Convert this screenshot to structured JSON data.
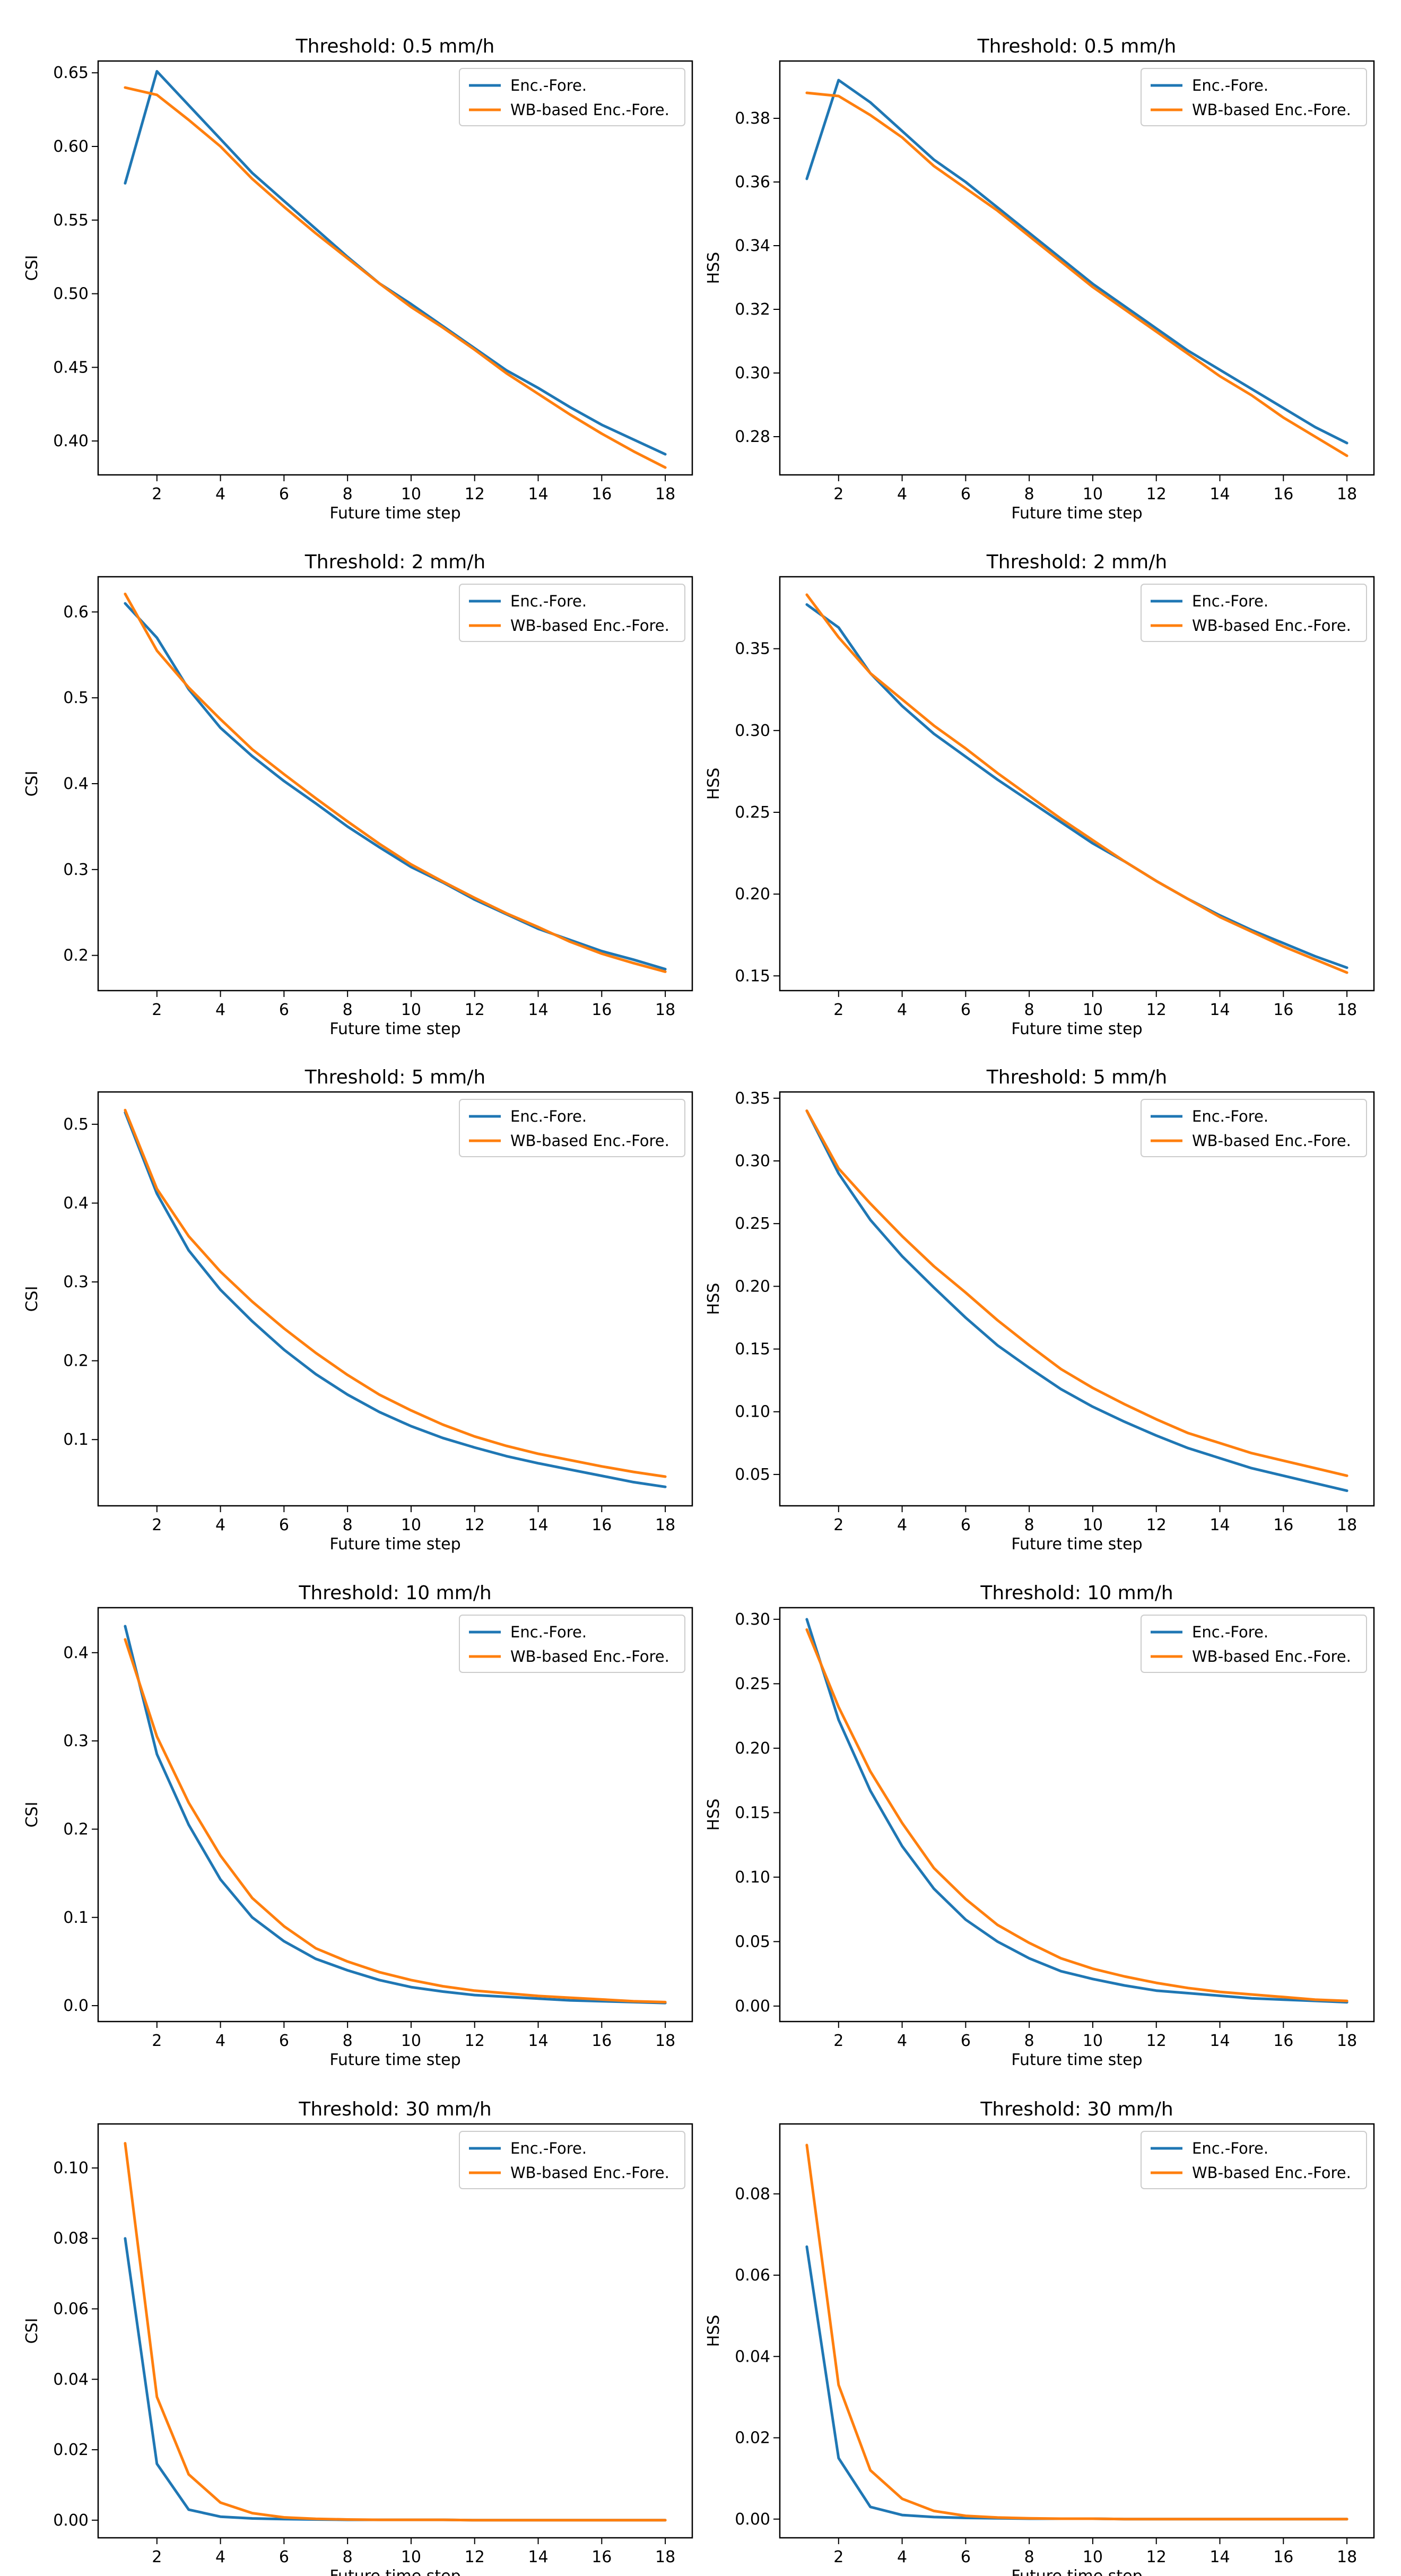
{
  "figure": {
    "xlabel": "Future time step",
    "legend_labels": [
      "Enc.-Fore.",
      "WB-based Enc.-Fore."
    ]
  },
  "series_colors": [
    "#1f77b4",
    "#ff7f0e"
  ],
  "chart_data": [
    {
      "type": "line",
      "title": "Threshold: 0.5 mm/h",
      "xlabel": "Future time step",
      "ylabel": "CSI",
      "x": [
        1,
        2,
        3,
        4,
        5,
        6,
        7,
        8,
        9,
        10,
        11,
        12,
        13,
        14,
        15,
        16,
        17,
        18
      ],
      "xlim": [
        0.15,
        18.85
      ],
      "ylim": [
        0.377,
        0.658
      ],
      "xticks": [
        2,
        4,
        6,
        8,
        10,
        12,
        14,
        16,
        18
      ],
      "xtick_labels": [
        "2",
        "4",
        "6",
        "8",
        "10",
        "12",
        "14",
        "16",
        "18"
      ],
      "yticks": [
        0.4,
        0.45,
        0.5,
        0.55,
        0.6,
        0.65
      ],
      "ytick_labels": [
        "0.40",
        "0.45",
        "0.50",
        "0.55",
        "0.60",
        "0.65"
      ],
      "legend_position": "top-right",
      "series": [
        {
          "name": "Enc.-Fore.",
          "values": [
            0.575,
            0.651,
            0.628,
            0.605,
            0.582,
            0.563,
            0.544,
            0.525,
            0.507,
            0.493,
            0.478,
            0.463,
            0.448,
            0.436,
            0.423,
            0.411,
            0.401,
            0.391
          ]
        },
        {
          "name": "WB-based Enc.-Fore.",
          "values": [
            0.64,
            0.635,
            0.618,
            0.6,
            0.578,
            0.559,
            0.541,
            0.524,
            0.507,
            0.491,
            0.477,
            0.462,
            0.446,
            0.432,
            0.418,
            0.405,
            0.393,
            0.382
          ]
        }
      ]
    },
    {
      "type": "line",
      "title": "Threshold: 0.5 mm/h",
      "xlabel": "Future time step",
      "ylabel": "HSS",
      "x": [
        1,
        2,
        3,
        4,
        5,
        6,
        7,
        8,
        9,
        10,
        11,
        12,
        13,
        14,
        15,
        16,
        17,
        18
      ],
      "xlim": [
        0.15,
        18.85
      ],
      "ylim": [
        0.268,
        0.398
      ],
      "xticks": [
        2,
        4,
        6,
        8,
        10,
        12,
        14,
        16,
        18
      ],
      "xtick_labels": [
        "2",
        "4",
        "6",
        "8",
        "10",
        "12",
        "14",
        "16",
        "18"
      ],
      "yticks": [
        0.28,
        0.3,
        0.32,
        0.34,
        0.36,
        0.38
      ],
      "ytick_labels": [
        "0.28",
        "0.30",
        "0.32",
        "0.34",
        "0.36",
        "0.38"
      ],
      "legend_position": "top-right",
      "series": [
        {
          "name": "Enc.-Fore.",
          "values": [
            0.361,
            0.392,
            0.385,
            0.376,
            0.367,
            0.36,
            0.352,
            0.344,
            0.336,
            0.328,
            0.321,
            0.314,
            0.307,
            0.301,
            0.295,
            0.289,
            0.283,
            0.278
          ]
        },
        {
          "name": "WB-based Enc.-Fore.",
          "values": [
            0.388,
            0.387,
            0.381,
            0.374,
            0.365,
            0.358,
            0.351,
            0.343,
            0.335,
            0.327,
            0.32,
            0.313,
            0.306,
            0.299,
            0.293,
            0.286,
            0.28,
            0.274
          ]
        }
      ]
    },
    {
      "type": "line",
      "title": "Threshold: 2 mm/h",
      "xlabel": "Future time step",
      "ylabel": "CSI",
      "x": [
        1,
        2,
        3,
        4,
        5,
        6,
        7,
        8,
        9,
        10,
        11,
        12,
        13,
        14,
        15,
        16,
        17,
        18
      ],
      "xlim": [
        0.15,
        18.85
      ],
      "ylim": [
        0.159,
        0.641
      ],
      "xticks": [
        2,
        4,
        6,
        8,
        10,
        12,
        14,
        16,
        18
      ],
      "xtick_labels": [
        "2",
        "4",
        "6",
        "8",
        "10",
        "12",
        "14",
        "16",
        "18"
      ],
      "yticks": [
        0.2,
        0.3,
        0.4,
        0.5,
        0.6
      ],
      "ytick_labels": [
        "0.2",
        "0.3",
        "0.4",
        "0.5",
        "0.6"
      ],
      "legend_position": "top-right",
      "series": [
        {
          "name": "Enc.-Fore.",
          "values": [
            0.61,
            0.57,
            0.51,
            0.465,
            0.432,
            0.403,
            0.377,
            0.35,
            0.326,
            0.303,
            0.285,
            0.265,
            0.248,
            0.231,
            0.218,
            0.205,
            0.195,
            0.184
          ]
        },
        {
          "name": "WB-based Enc.-Fore.",
          "values": [
            0.621,
            0.555,
            0.512,
            0.475,
            0.44,
            0.411,
            0.383,
            0.356,
            0.33,
            0.306,
            0.286,
            0.267,
            0.249,
            0.233,
            0.216,
            0.202,
            0.191,
            0.181
          ]
        }
      ]
    },
    {
      "type": "line",
      "title": "Threshold: 2 mm/h",
      "xlabel": "Future time step",
      "ylabel": "HSS",
      "x": [
        1,
        2,
        3,
        4,
        5,
        6,
        7,
        8,
        9,
        10,
        11,
        12,
        13,
        14,
        15,
        16,
        17,
        18
      ],
      "xlim": [
        0.15,
        18.85
      ],
      "ylim": [
        0.141,
        0.394
      ],
      "xticks": [
        2,
        4,
        6,
        8,
        10,
        12,
        14,
        16,
        18
      ],
      "xtick_labels": [
        "2",
        "4",
        "6",
        "8",
        "10",
        "12",
        "14",
        "16",
        "18"
      ],
      "yticks": [
        0.15,
        0.2,
        0.25,
        0.3,
        0.35
      ],
      "ytick_labels": [
        "0.15",
        "0.20",
        "0.25",
        "0.30",
        "0.35"
      ],
      "legend_position": "top-right",
      "series": [
        {
          "name": "Enc.-Fore.",
          "values": [
            0.377,
            0.363,
            0.335,
            0.315,
            0.298,
            0.284,
            0.27,
            0.257,
            0.244,
            0.231,
            0.22,
            0.208,
            0.197,
            0.187,
            0.178,
            0.17,
            0.162,
            0.155
          ]
        },
        {
          "name": "WB-based Enc.-Fore.",
          "values": [
            0.383,
            0.357,
            0.335,
            0.319,
            0.303,
            0.289,
            0.274,
            0.26,
            0.246,
            0.233,
            0.22,
            0.208,
            0.197,
            0.186,
            0.177,
            0.168,
            0.16,
            0.152
          ]
        }
      ]
    },
    {
      "type": "line",
      "title": "Threshold: 5 mm/h",
      "xlabel": "Future time step",
      "ylabel": "CSI",
      "x": [
        1,
        2,
        3,
        4,
        5,
        6,
        7,
        8,
        9,
        10,
        11,
        12,
        13,
        14,
        15,
        16,
        17,
        18
      ],
      "xlim": [
        0.15,
        18.85
      ],
      "ylim": [
        0.016,
        0.541
      ],
      "xticks": [
        2,
        4,
        6,
        8,
        10,
        12,
        14,
        16,
        18
      ],
      "xtick_labels": [
        "2",
        "4",
        "6",
        "8",
        "10",
        "12",
        "14",
        "16",
        "18"
      ],
      "yticks": [
        0.1,
        0.2,
        0.3,
        0.4,
        0.5
      ],
      "ytick_labels": [
        "0.1",
        "0.2",
        "0.3",
        "0.4",
        "0.5"
      ],
      "legend_position": "top-right",
      "series": [
        {
          "name": "Enc.-Fore.",
          "values": [
            0.515,
            0.412,
            0.34,
            0.29,
            0.25,
            0.214,
            0.183,
            0.157,
            0.135,
            0.117,
            0.102,
            0.09,
            0.079,
            0.07,
            0.062,
            0.054,
            0.046,
            0.04
          ]
        },
        {
          "name": "WB-based Enc.-Fore.",
          "values": [
            0.518,
            0.418,
            0.358,
            0.313,
            0.275,
            0.241,
            0.21,
            0.182,
            0.157,
            0.137,
            0.119,
            0.104,
            0.092,
            0.082,
            0.074,
            0.066,
            0.059,
            0.053
          ]
        }
      ]
    },
    {
      "type": "line",
      "title": "Threshold: 5 mm/h",
      "xlabel": "Future time step",
      "ylabel": "HSS",
      "x": [
        1,
        2,
        3,
        4,
        5,
        6,
        7,
        8,
        9,
        10,
        11,
        12,
        13,
        14,
        15,
        16,
        17,
        18
      ],
      "xlim": [
        0.15,
        18.85
      ],
      "ylim": [
        0.025,
        0.355
      ],
      "xticks": [
        2,
        4,
        6,
        8,
        10,
        12,
        14,
        16,
        18
      ],
      "xtick_labels": [
        "2",
        "4",
        "6",
        "8",
        "10",
        "12",
        "14",
        "16",
        "18"
      ],
      "yticks": [
        0.05,
        0.1,
        0.15,
        0.2,
        0.25,
        0.3,
        0.35
      ],
      "ytick_labels": [
        "0.05",
        "0.10",
        "0.15",
        "0.20",
        "0.25",
        "0.30",
        "0.35"
      ],
      "legend_position": "top-right",
      "series": [
        {
          "name": "Enc.-Fore.",
          "values": [
            0.34,
            0.29,
            0.253,
            0.224,
            0.199,
            0.175,
            0.153,
            0.135,
            0.118,
            0.104,
            0.092,
            0.081,
            0.071,
            0.063,
            0.055,
            0.049,
            0.043,
            0.037
          ]
        },
        {
          "name": "WB-based Enc.-Fore.",
          "values": [
            0.34,
            0.294,
            0.266,
            0.24,
            0.216,
            0.195,
            0.173,
            0.153,
            0.134,
            0.119,
            0.106,
            0.094,
            0.083,
            0.075,
            0.067,
            0.061,
            0.055,
            0.049
          ]
        }
      ]
    },
    {
      "type": "line",
      "title": "Threshold: 10 mm/h",
      "xlabel": "Future time step",
      "ylabel": "CSI",
      "x": [
        1,
        2,
        3,
        4,
        5,
        6,
        7,
        8,
        9,
        10,
        11,
        12,
        13,
        14,
        15,
        16,
        17,
        18
      ],
      "xlim": [
        0.15,
        18.85
      ],
      "ylim": [
        -0.018,
        0.451
      ],
      "xticks": [
        2,
        4,
        6,
        8,
        10,
        12,
        14,
        16,
        18
      ],
      "xtick_labels": [
        "2",
        "4",
        "6",
        "8",
        "10",
        "12",
        "14",
        "16",
        "18"
      ],
      "yticks": [
        0.0,
        0.1,
        0.2,
        0.3,
        0.4
      ],
      "ytick_labels": [
        "0.0",
        "0.1",
        "0.2",
        "0.3",
        "0.4"
      ],
      "legend_position": "top-right",
      "series": [
        {
          "name": "Enc.-Fore.",
          "values": [
            0.43,
            0.285,
            0.205,
            0.143,
            0.1,
            0.073,
            0.053,
            0.04,
            0.029,
            0.021,
            0.016,
            0.012,
            0.01,
            0.008,
            0.006,
            0.005,
            0.004,
            0.003
          ]
        },
        {
          "name": "WB-based Enc.-Fore.",
          "values": [
            0.415,
            0.305,
            0.23,
            0.17,
            0.122,
            0.09,
            0.065,
            0.05,
            0.038,
            0.029,
            0.022,
            0.017,
            0.014,
            0.011,
            0.009,
            0.007,
            0.005,
            0.004
          ]
        }
      ]
    },
    {
      "type": "line",
      "title": "Threshold: 10 mm/h",
      "xlabel": "Future time step",
      "ylabel": "HSS",
      "x": [
        1,
        2,
        3,
        4,
        5,
        6,
        7,
        8,
        9,
        10,
        11,
        12,
        13,
        14,
        15,
        16,
        17,
        18
      ],
      "xlim": [
        0.15,
        18.85
      ],
      "ylim": [
        -0.012,
        0.309
      ],
      "xticks": [
        2,
        4,
        6,
        8,
        10,
        12,
        14,
        16,
        18
      ],
      "xtick_labels": [
        "2",
        "4",
        "6",
        "8",
        "10",
        "12",
        "14",
        "16",
        "18"
      ],
      "yticks": [
        0.0,
        0.05,
        0.1,
        0.15,
        0.2,
        0.25,
        0.3
      ],
      "ytick_labels": [
        "0.00",
        "0.05",
        "0.10",
        "0.15",
        "0.20",
        "0.25",
        "0.30"
      ],
      "legend_position": "top-right",
      "series": [
        {
          "name": "Enc.-Fore.",
          "values": [
            0.3,
            0.222,
            0.167,
            0.124,
            0.091,
            0.067,
            0.05,
            0.037,
            0.027,
            0.021,
            0.016,
            0.012,
            0.01,
            0.008,
            0.006,
            0.005,
            0.004,
            0.003
          ]
        },
        {
          "name": "WB-based Enc.-Fore.",
          "values": [
            0.292,
            0.232,
            0.182,
            0.142,
            0.107,
            0.083,
            0.063,
            0.049,
            0.037,
            0.029,
            0.023,
            0.018,
            0.014,
            0.011,
            0.009,
            0.007,
            0.005,
            0.004
          ]
        }
      ]
    },
    {
      "type": "line",
      "title": "Threshold: 30 mm/h",
      "xlabel": "Future time step",
      "ylabel": "CSI",
      "x": [
        1,
        2,
        3,
        4,
        5,
        6,
        7,
        8,
        9,
        10,
        11,
        12,
        13,
        14,
        15,
        16,
        17,
        18
      ],
      "xlim": [
        0.15,
        18.85
      ],
      "ylim": [
        -0.005,
        0.1125
      ],
      "xticks": [
        2,
        4,
        6,
        8,
        10,
        12,
        14,
        16,
        18
      ],
      "xtick_labels": [
        "2",
        "4",
        "6",
        "8",
        "10",
        "12",
        "14",
        "16",
        "18"
      ],
      "yticks": [
        0.0,
        0.02,
        0.04,
        0.06,
        0.08,
        0.1
      ],
      "ytick_labels": [
        "0.00",
        "0.02",
        "0.04",
        "0.06",
        "0.08",
        "0.10"
      ],
      "legend_position": "top-right",
      "series": [
        {
          "name": "Enc.-Fore.",
          "values": [
            0.08,
            0.016,
            0.003,
            0.001,
            0.0005,
            0.0003,
            0.0002,
            0.0001,
            0.0001,
            0.0001,
            0.0001,
            0.0,
            0.0,
            0.0,
            0.0,
            0.0,
            0.0,
            0.0
          ]
        },
        {
          "name": "WB-based Enc.-Fore.",
          "values": [
            0.107,
            0.035,
            0.013,
            0.005,
            0.002,
            0.0008,
            0.0004,
            0.0002,
            0.0001,
            0.0001,
            0.0001,
            0.0,
            0.0,
            0.0,
            0.0,
            0.0,
            0.0,
            0.0
          ]
        }
      ]
    },
    {
      "type": "line",
      "title": "Threshold: 30 mm/h",
      "xlabel": "Future time step",
      "ylabel": "HSS",
      "x": [
        1,
        2,
        3,
        4,
        5,
        6,
        7,
        8,
        9,
        10,
        11,
        12,
        13,
        14,
        15,
        16,
        17,
        18
      ],
      "xlim": [
        0.15,
        18.85
      ],
      "ylim": [
        -0.0046,
        0.0972
      ],
      "xticks": [
        2,
        4,
        6,
        8,
        10,
        12,
        14,
        16,
        18
      ],
      "xtick_labels": [
        "2",
        "4",
        "6",
        "8",
        "10",
        "12",
        "14",
        "16",
        "18"
      ],
      "yticks": [
        0.0,
        0.02,
        0.04,
        0.06,
        0.08
      ],
      "ytick_labels": [
        "0.00",
        "0.02",
        "0.04",
        "0.06",
        "0.08"
      ],
      "legend_position": "top-right",
      "series": [
        {
          "name": "Enc.-Fore.",
          "values": [
            0.067,
            0.015,
            0.003,
            0.001,
            0.0005,
            0.0003,
            0.0002,
            0.0001,
            0.0001,
            0.0001,
            0.0,
            0.0,
            0.0,
            0.0,
            0.0,
            0.0,
            0.0,
            0.0
          ]
        },
        {
          "name": "WB-based Enc.-Fore.",
          "values": [
            0.092,
            0.033,
            0.012,
            0.005,
            0.002,
            0.0008,
            0.0004,
            0.0002,
            0.0001,
            0.0001,
            0.0,
            0.0,
            0.0,
            0.0,
            0.0,
            0.0,
            0.0,
            0.0
          ]
        }
      ]
    }
  ]
}
